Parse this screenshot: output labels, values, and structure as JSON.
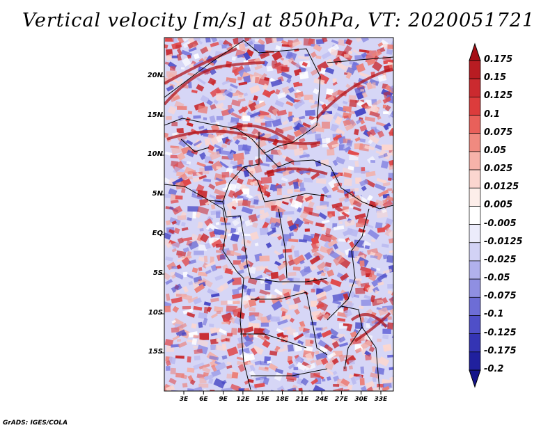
{
  "title": "Vertical velocity [m/s] at 850hPa, VT: 2020051721",
  "credit": "GrADS: IGES/COLA",
  "lat_labels": [
    "20N",
    "15N",
    "10N",
    "5N",
    "EQ",
    "5S",
    "10S",
    "15S"
  ],
  "lon_labels": [
    "3E",
    "6E",
    "9E",
    "12E",
    "15E",
    "18E",
    "21E",
    "24E",
    "27E",
    "30E",
    "33E"
  ],
  "colorbar": {
    "labels": [
      "0.175",
      "0.15",
      "0.125",
      "0.1",
      "0.075",
      "0.05",
      "0.025",
      "0.0125",
      "0.005",
      "-0.005",
      "-0.0125",
      "-0.025",
      "-0.05",
      "-0.075",
      "-0.1",
      "-0.125",
      "-0.175",
      "-0.2"
    ],
    "colors": [
      "#a50f15",
      "#b81c22",
      "#cb2a2f",
      "#dc3c3c",
      "#e9605a",
      "#f08a80",
      "#f6b3aa",
      "#fbd6d0",
      "#fdeeea",
      "#ffffff",
      "#ececfb",
      "#d2d2f5",
      "#b1b1ec",
      "#8f8fe2",
      "#6d6dd6",
      "#4f4fc8",
      "#3434b4",
      "#20209e",
      "#14148a"
    ]
  },
  "map": {
    "background": "#d6d6f6",
    "red": "#e0484a",
    "blue": "#5858d8",
    "border": "#000000"
  }
}
